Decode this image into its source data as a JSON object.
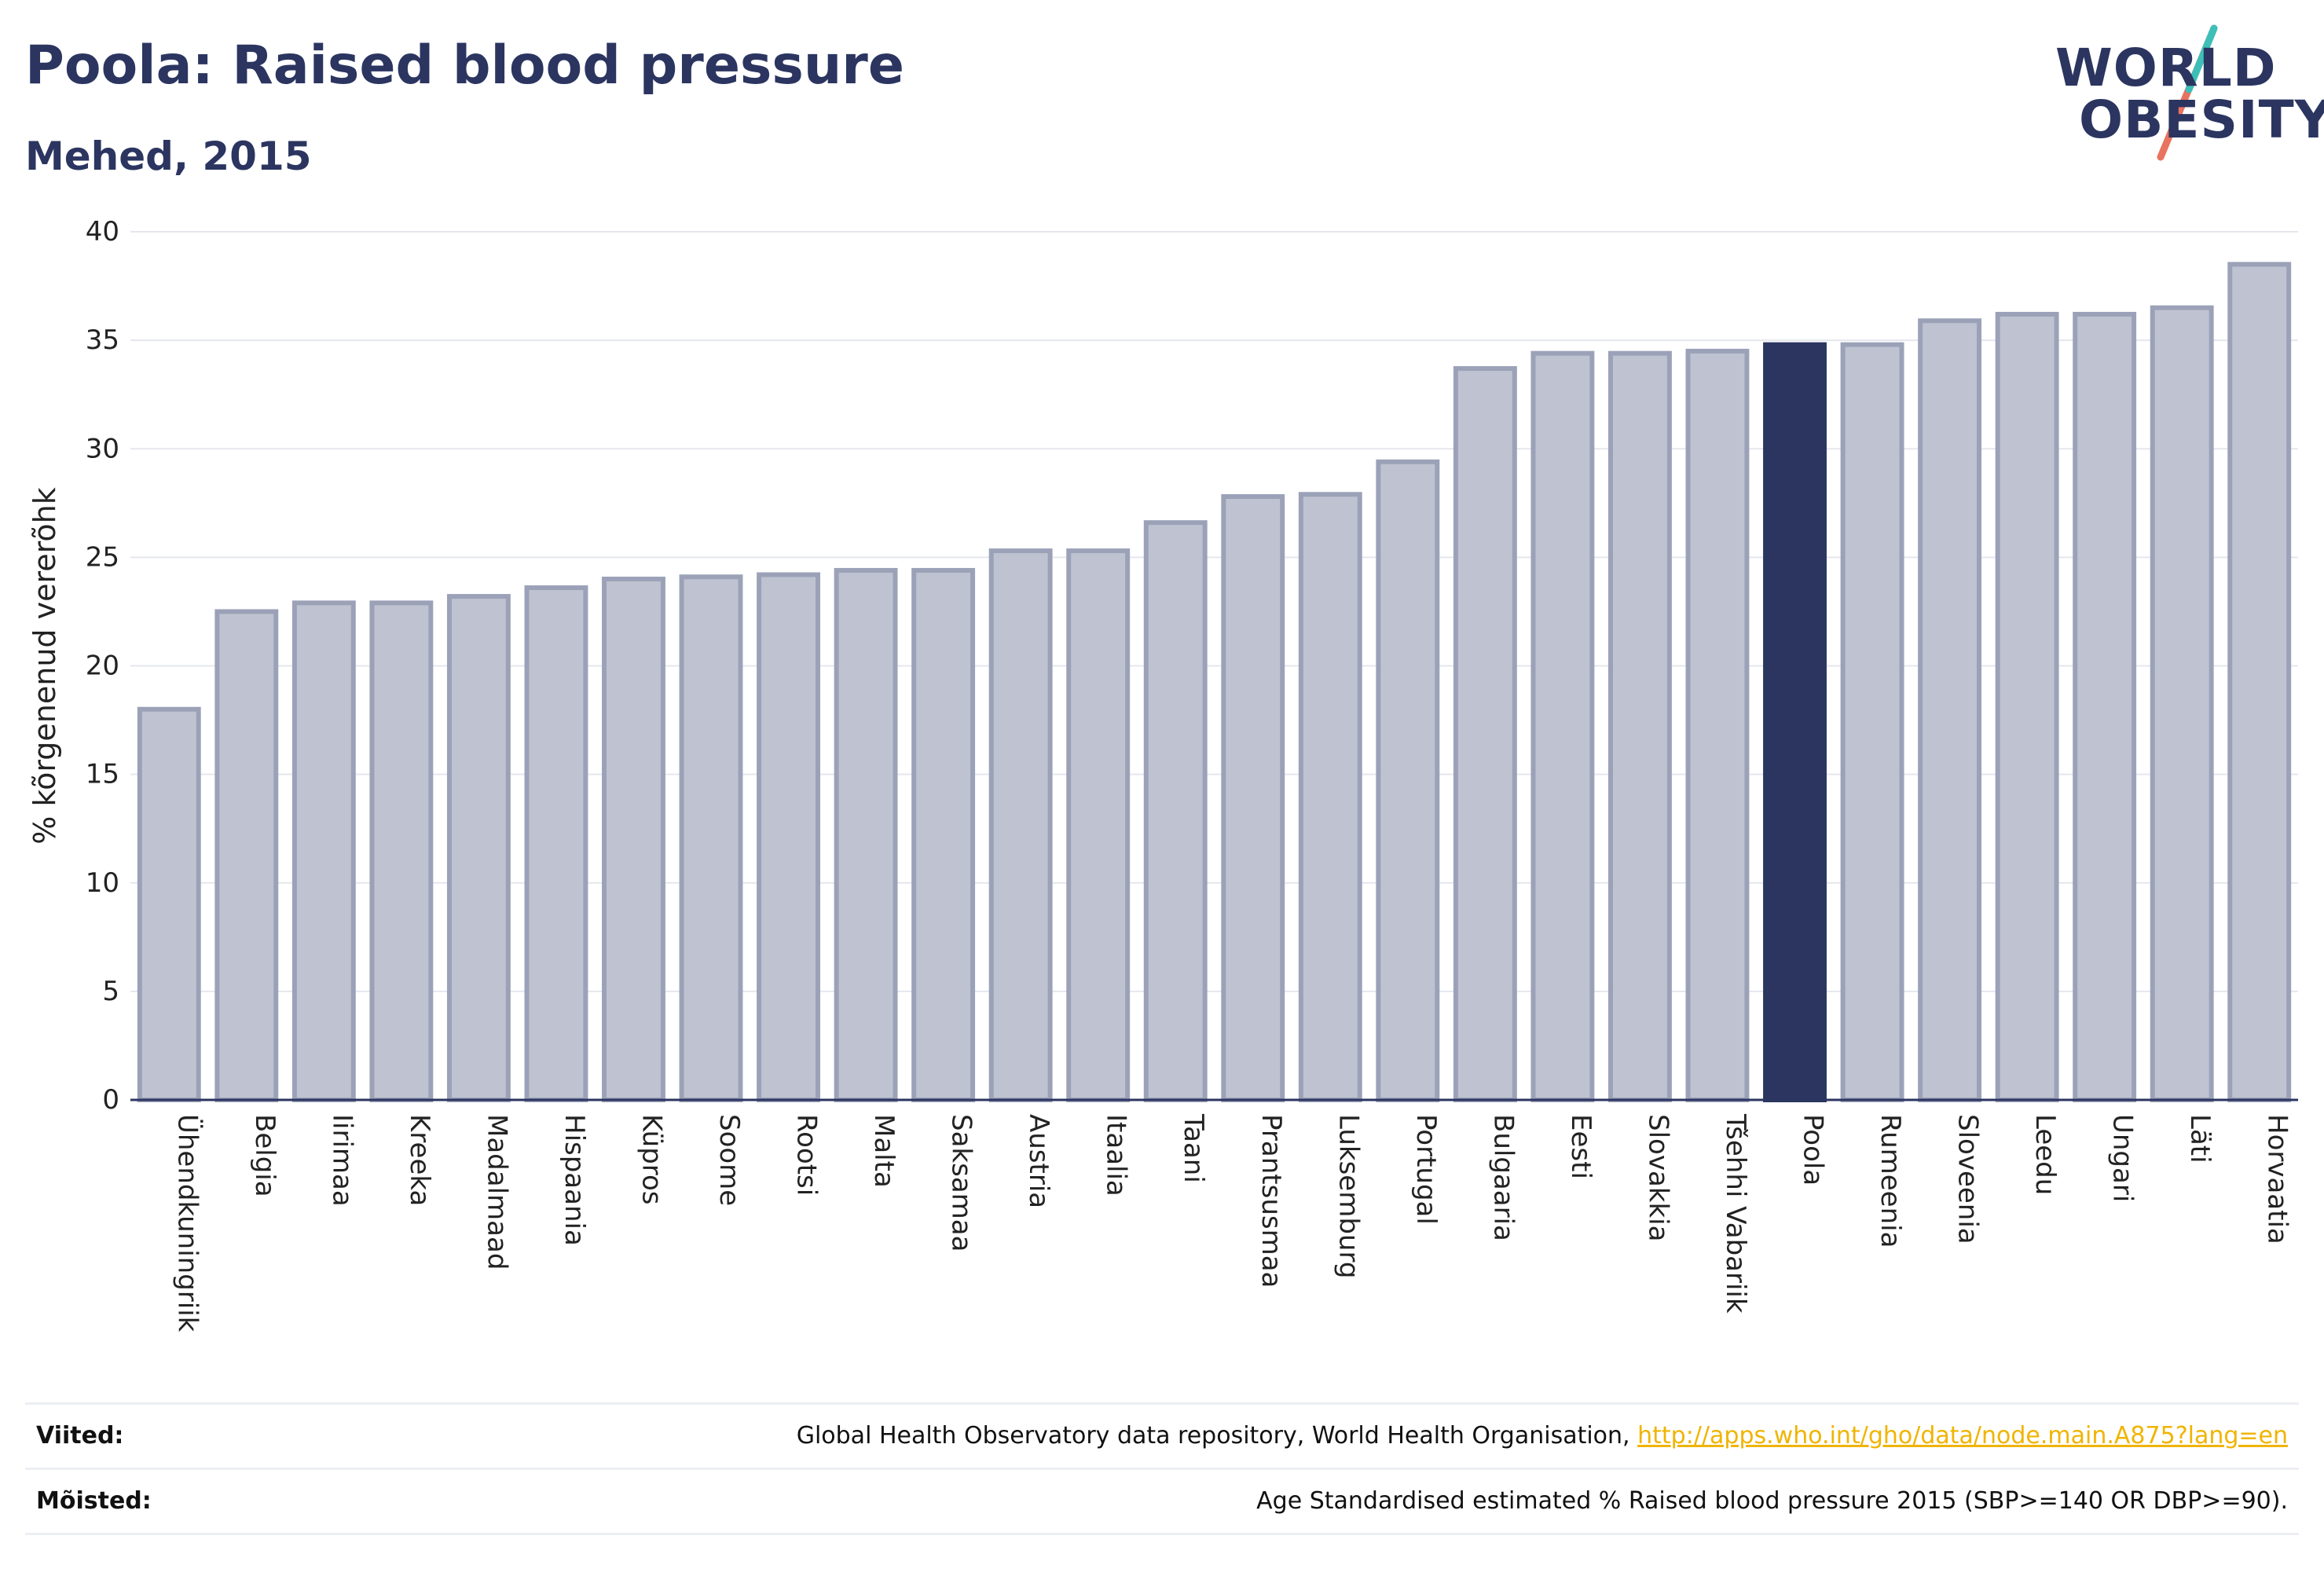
{
  "title": "Poola: Raised blood pressure",
  "subtitle": "Mehed, 2015",
  "logo": {
    "line1": "WORLD",
    "line2": "OBESITY",
    "accent_colors": [
      "#3dbfb8",
      "#e8735f"
    ]
  },
  "colors": {
    "bar": "#bfc3d1",
    "bar_border": "#9ba2b8",
    "highlight": "#2b3560",
    "text": "#2b3560",
    "grid": "#e5e7ee",
    "link": "#f0b400"
  },
  "chart_data": {
    "type": "bar",
    "ylabel": "% kõrgenenud vererõhk",
    "ylim": [
      0,
      40
    ],
    "yticks": [
      0,
      5,
      10,
      15,
      20,
      25,
      30,
      35,
      40
    ],
    "grid": true,
    "highlight": "Poola",
    "categories": [
      "Ühendkuningriik",
      "Belgia",
      "Iirimaa",
      "Kreeka",
      "Madalmaad",
      "Hispaania",
      "Küpros",
      "Soome",
      "Rootsi",
      "Malta",
      "Saksamaa",
      "Austria",
      "Itaalia",
      "Taani",
      "Prantsusmaa",
      "Luksemburg",
      "Portugal",
      "Bulgaaria",
      "Eesti",
      "Slovakkia",
      "Tšehhi Vabariik",
      "Poola",
      "Rumeenia",
      "Sloveenia",
      "Leedu",
      "Ungari",
      "Läti",
      "Horvaatia"
    ],
    "values": [
      18.0,
      22.5,
      22.9,
      22.9,
      23.2,
      23.6,
      24.0,
      24.1,
      24.2,
      24.4,
      24.4,
      25.3,
      25.3,
      26.6,
      27.8,
      27.9,
      29.4,
      33.7,
      34.4,
      34.4,
      34.5,
      34.8,
      34.8,
      35.9,
      36.2,
      36.2,
      36.5,
      38.5
    ]
  },
  "footer": {
    "references_label": "Viited:",
    "references_text": "Global Health Observatory data repository, World Health Organisation,",
    "references_link": "http://apps.who.int/gho/data/node.main.A875?lang=en",
    "definitions_label": "Mõisted:",
    "definitions_text": "Age Standardised estimated % Raised blood pressure 2015 (SBP>=140 OR DBP>=90)."
  }
}
